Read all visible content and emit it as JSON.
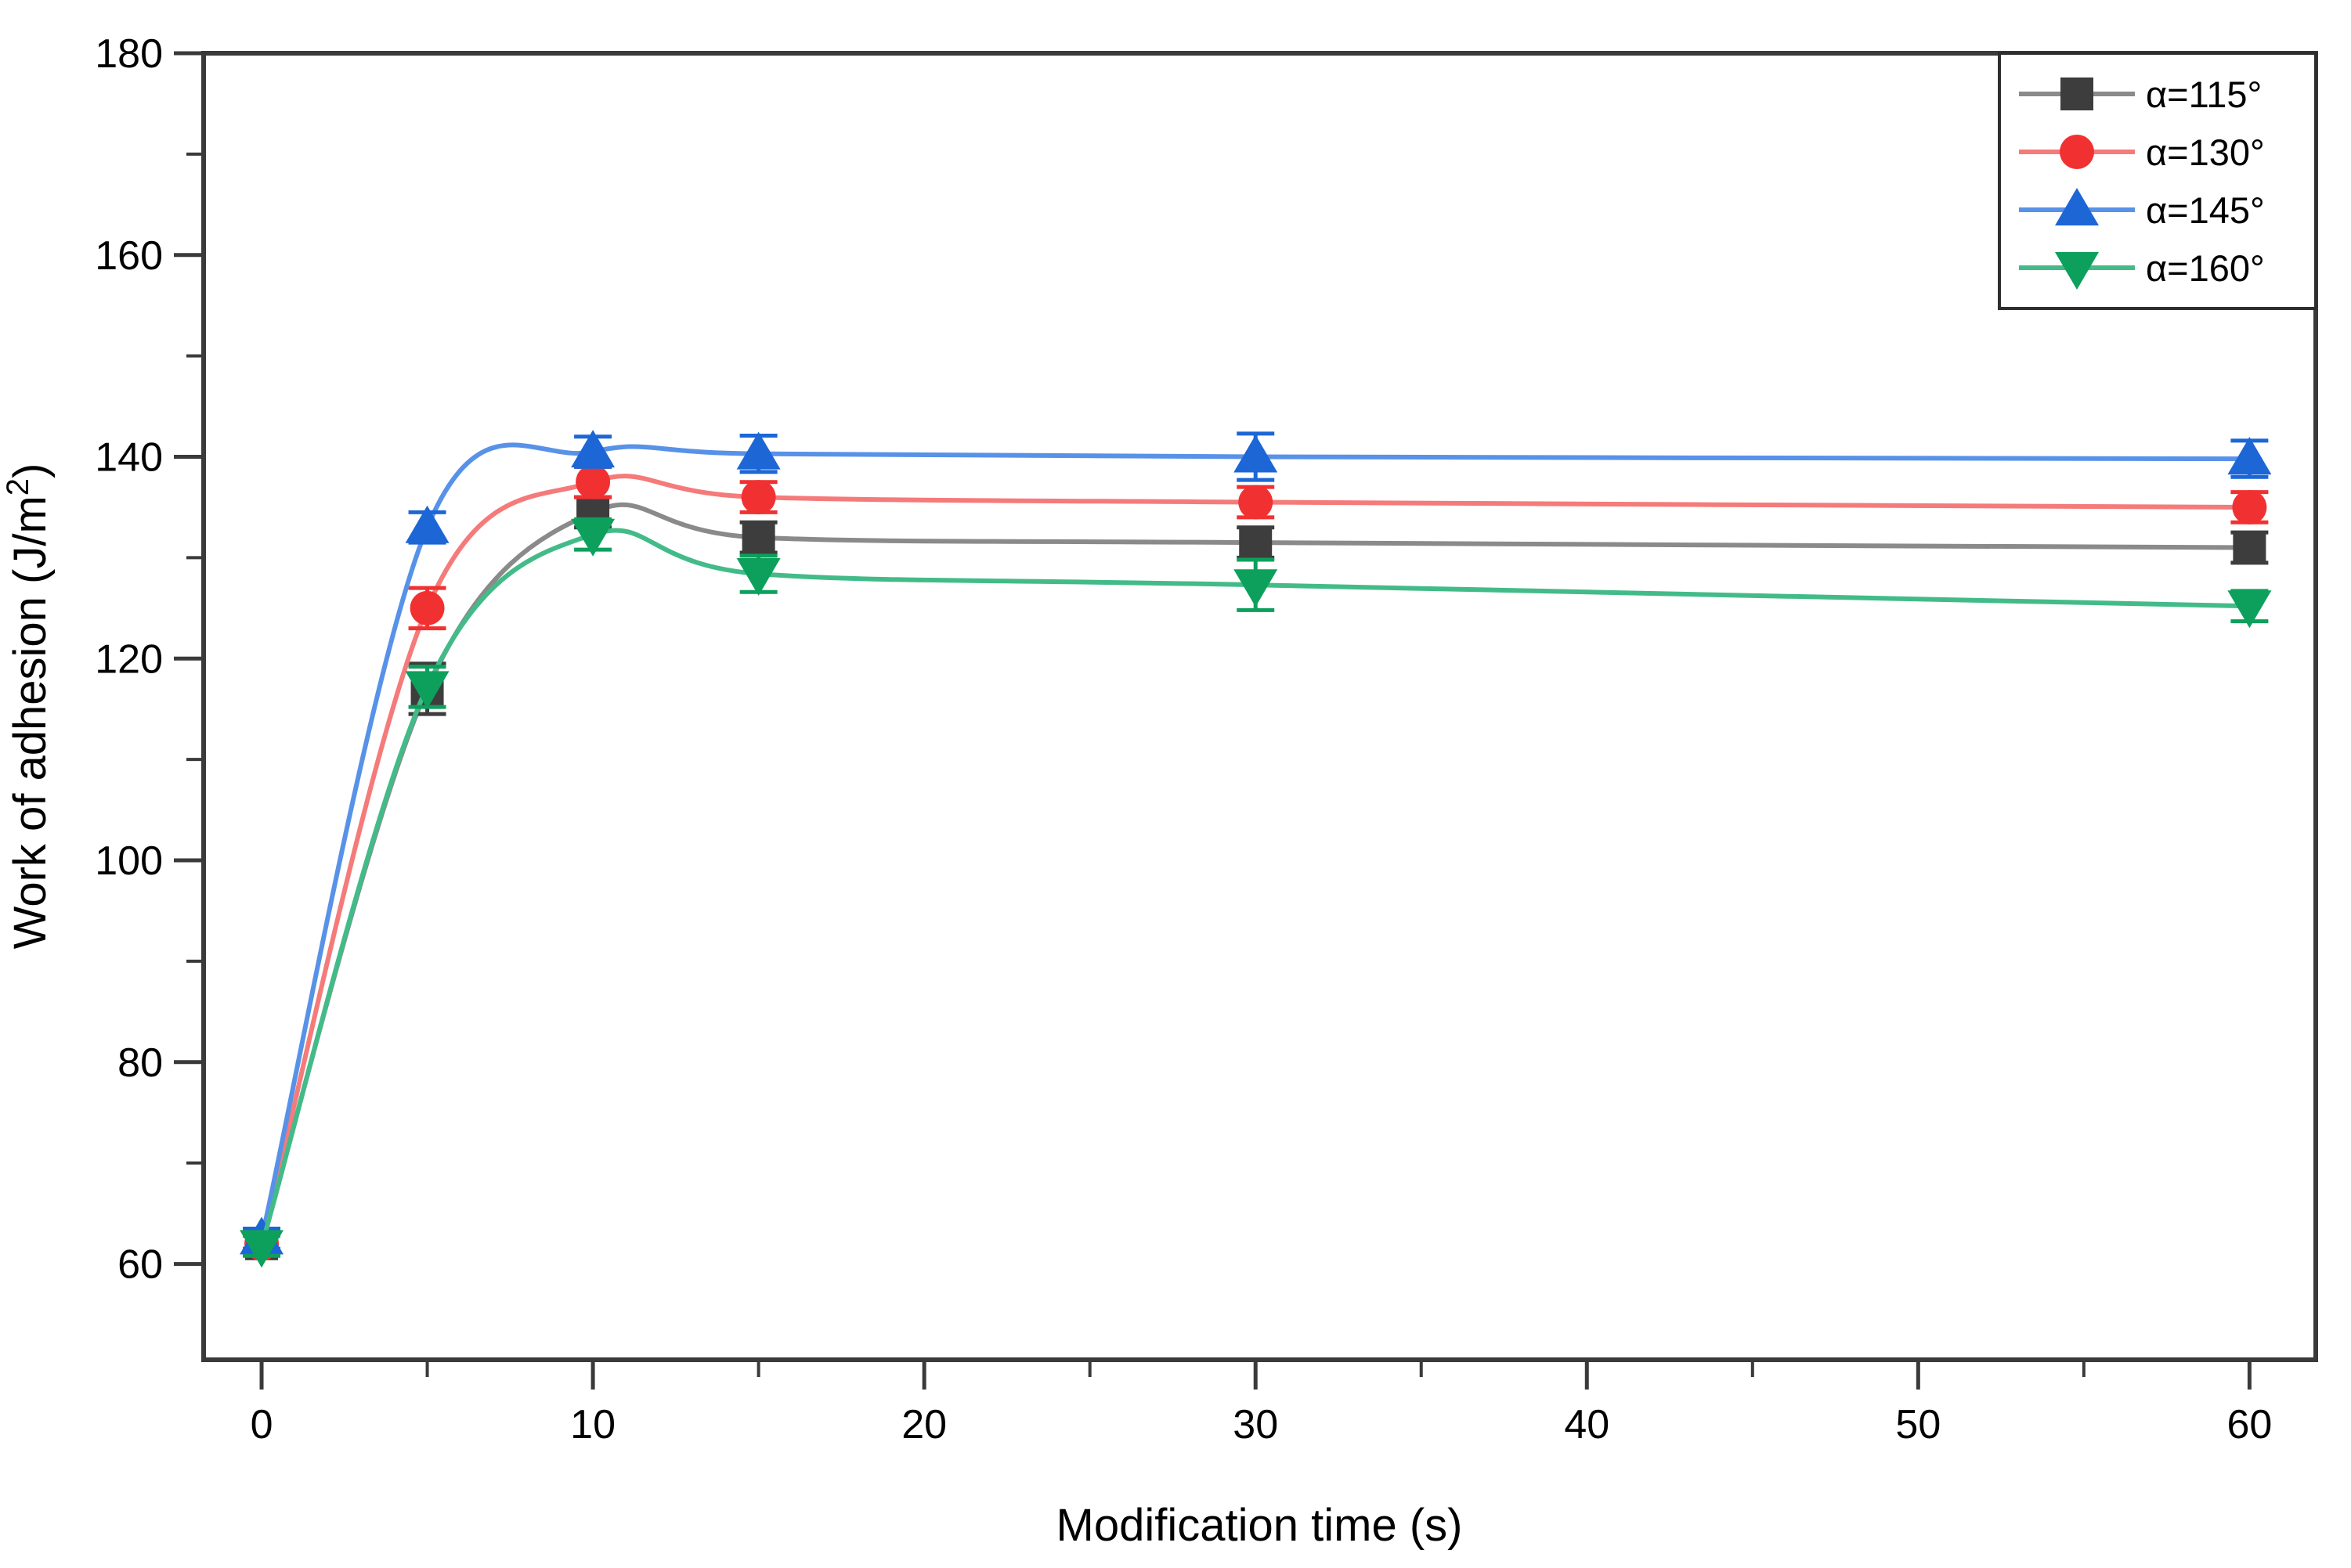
{
  "figure": {
    "background": "#ffffff",
    "frame_color": "#3a3a3a"
  },
  "chart_data": {
    "type": "line",
    "title": "",
    "xlabel": "Modification time (s)",
    "ylabel": "Work of adhesion (J/m²)",
    "grid": false,
    "legend_position": "top-right",
    "legend_framed": true,
    "x": [
      0,
      5,
      10,
      15,
      30,
      60
    ],
    "xlim": [
      -1.75,
      62
    ],
    "ylim": [
      50.5,
      180
    ],
    "x_major_ticks": [
      0,
      10,
      20,
      30,
      40,
      50,
      60
    ],
    "x_minor_ticks": [
      5,
      15,
      25,
      35,
      45,
      55
    ],
    "y_major_ticks": [
      60,
      80,
      100,
      120,
      140,
      160,
      180
    ],
    "y_minor_ticks": [
      70,
      90,
      110,
      130,
      150,
      170
    ],
    "series": [
      {
        "name": "α=115°",
        "marker": "square",
        "marker_color": "#3d3d3d",
        "line_color": "#8a8a8a",
        "values": [
          62.0,
          117.0,
          134.5,
          132.0,
          131.5,
          131.0
        ],
        "errors": [
          1.0,
          2.5,
          1.5,
          1.5,
          1.5,
          1.5
        ]
      },
      {
        "name": "α=130°",
        "marker": "circle",
        "marker_color": "#f13131",
        "line_color": "#f57a7a",
        "values": [
          62.0,
          125.0,
          137.5,
          136.0,
          135.5,
          135.0
        ],
        "errors": [
          1.0,
          2.0,
          1.5,
          1.5,
          1.5,
          1.5
        ]
      },
      {
        "name": "α=145°",
        "marker": "triangle-up",
        "marker_color": "#1c66d6",
        "line_color": "#5892e8",
        "values": [
          62.5,
          133.0,
          140.5,
          140.3,
          140.0,
          139.8
        ],
        "errors": [
          1.0,
          1.5,
          1.5,
          1.8,
          2.3,
          1.8
        ]
      },
      {
        "name": "α=160°",
        "marker": "triangle-down",
        "marker_color": "#0da05c",
        "line_color": "#43bb89",
        "values": [
          61.8,
          117.2,
          132.3,
          128.4,
          127.3,
          125.2
        ],
        "errors": [
          1.0,
          2.0,
          1.5,
          1.8,
          2.5,
          1.5
        ]
      }
    ]
  }
}
